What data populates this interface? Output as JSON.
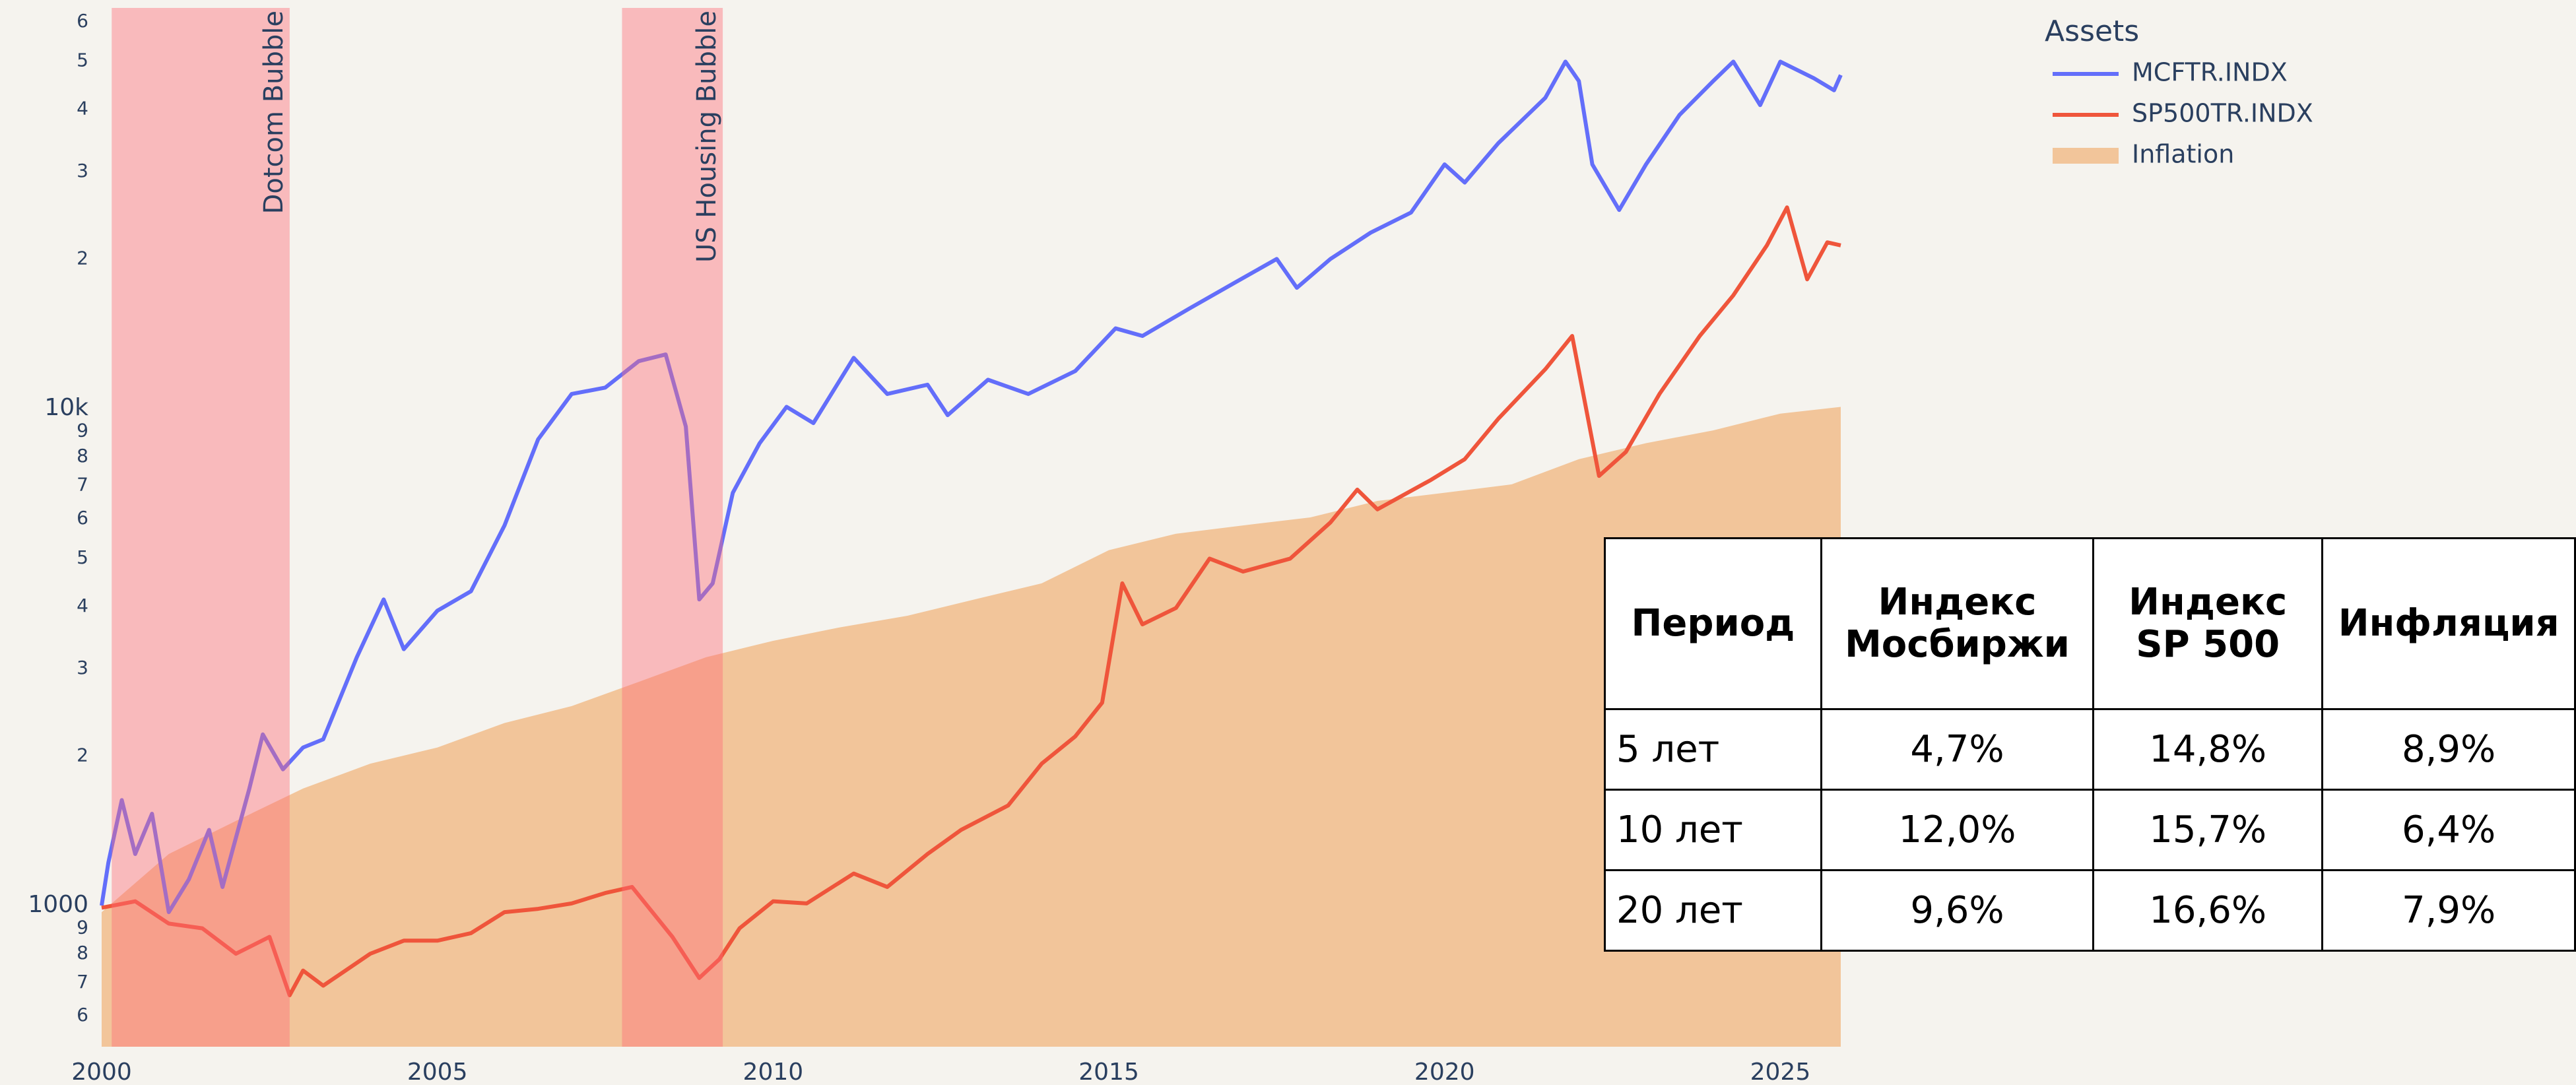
{
  "chart_data": {
    "type": "line",
    "log_y": true,
    "grid": false,
    "legend": "top-right",
    "legend_title": "Assets",
    "xlim": [
      2000,
      2025.9
    ],
    "xticks": [
      2000,
      2005,
      2010,
      2015,
      2020,
      2025
    ],
    "ylim": [
      520,
      64000
    ],
    "yticks": [
      {
        "value": 600,
        "label": "6"
      },
      {
        "value": 700,
        "label": "7"
      },
      {
        "value": 800,
        "label": "8"
      },
      {
        "value": 900,
        "label": "9"
      },
      1000,
      {
        "value": 2000,
        "label": "2"
      },
      {
        "value": 3000,
        "label": "3"
      },
      {
        "value": 4000,
        "label": "4"
      },
      {
        "value": 5000,
        "label": "5"
      },
      {
        "value": 6000,
        "label": "6"
      },
      {
        "value": 7000,
        "label": "7"
      },
      {
        "value": 8000,
        "label": "8"
      },
      {
        "value": 9000,
        "label": "9"
      },
      {
        "value": 10000,
        "label": "10k"
      },
      {
        "value": 20000,
        "label": "2"
      },
      {
        "value": 30000,
        "label": "3"
      },
      {
        "value": 40000,
        "label": "4"
      },
      {
        "value": 50000,
        "label": "5"
      },
      {
        "value": 60000,
        "label": "6"
      }
    ],
    "annotations": [
      {
        "label": "Dotcom Bubble",
        "start": 2000.15,
        "end": 2002.8,
        "color": "#ff6b78"
      },
      {
        "label": "US Housing Bubble",
        "start": 2007.75,
        "end": 2009.25,
        "color": "#ff6b78"
      }
    ],
    "series": [
      {
        "name": "MCFTR.INDX",
        "color": "#636efa",
        "kind": "line",
        "x": [
          2000.0,
          2000.1,
          2000.3,
          2000.5,
          2000.75,
          2001.0,
          2001.3,
          2001.6,
          2001.8,
          2002.2,
          2002.4,
          2002.7,
          2003.0,
          2003.3,
          2003.8,
          2004.2,
          2004.5,
          2005.0,
          2005.5,
          2006.0,
          2006.5,
          2007.0,
          2007.5,
          2008.0,
          2008.4,
          2008.7,
          2008.9,
          2009.1,
          2009.4,
          2009.8,
          2010.2,
          2010.6,
          2011.2,
          2011.7,
          2012.3,
          2012.6,
          2013.2,
          2013.8,
          2014.5,
          2015.1,
          2015.5,
          2016.2,
          2016.9,
          2017.5,
          2017.8,
          2018.3,
          2018.9,
          2019.5,
          2020.0,
          2020.3,
          2020.8,
          2021.5,
          2021.8,
          2022.0,
          2022.2,
          2022.6,
          2023.0,
          2023.5,
          2024.0,
          2024.3,
          2024.7,
          2025.0,
          2025.5,
          2025.8,
          2025.9
        ],
        "values": [
          1000,
          1220,
          1630,
          1270,
          1530,
          970,
          1130,
          1420,
          1090,
          1720,
          2210,
          1880,
          2080,
          2160,
          3160,
          4130,
          3280,
          3920,
          4290,
          5820,
          8670,
          10700,
          11020,
          12460,
          12850,
          9200,
          4130,
          4450,
          6770,
          8520,
          10080,
          9350,
          12650,
          10700,
          11170,
          9700,
          11430,
          10700,
          11900,
          14500,
          14000,
          15900,
          18000,
          20000,
          17500,
          20000,
          22600,
          24800,
          31000,
          28500,
          34200,
          42200,
          49900,
          45600,
          31000,
          25100,
          31000,
          39000,
          45600,
          49900,
          40800,
          49900,
          46200,
          43700,
          46900
        ]
      },
      {
        "name": "SP500TR.INDX",
        "color": "#ef553b",
        "kind": "line",
        "x": [
          2000.0,
          2000.5,
          2001.0,
          2001.5,
          2002.0,
          2002.5,
          2002.8,
          2003.0,
          2003.3,
          2004.0,
          2004.5,
          2005.0,
          2005.5,
          2006.0,
          2006.5,
          2007.0,
          2007.5,
          2007.9,
          2008.5,
          2008.9,
          2009.2,
          2009.5,
          2010.0,
          2010.5,
          2011.2,
          2011.7,
          2012.3,
          2012.8,
          2013.5,
          2014.0,
          2014.5,
          2014.9,
          2015.2,
          2015.5,
          2016.0,
          2016.5,
          2017.0,
          2017.7,
          2018.3,
          2018.7,
          2019.0,
          2019.8,
          2020.3,
          2020.8,
          2021.5,
          2021.9,
          2022.3,
          2022.7,
          2023.2,
          2023.8,
          2024.3,
          2024.8,
          2025.1,
          2025.4,
          2025.7,
          2025.9
        ],
        "values": [
          990,
          1020,
          920,
          900,
          800,
          865,
          660,
          740,
          690,
          800,
          850,
          850,
          880,
          970,
          985,
          1010,
          1060,
          1090,
          865,
          715,
          780,
          900,
          1020,
          1010,
          1160,
          1090,
          1270,
          1420,
          1590,
          1930,
          2190,
          2560,
          4450,
          3680,
          3970,
          4990,
          4700,
          4990,
          5900,
          6870,
          6270,
          7190,
          7910,
          9540,
          12000,
          14000,
          7320,
          8180,
          10700,
          14000,
          16900,
          21300,
          25400,
          18200,
          21600,
          21300
        ]
      },
      {
        "name": "Inflation",
        "color": "#f2c59a",
        "kind": "area",
        "x": [
          2000,
          2001,
          2002,
          2003,
          2004,
          2005,
          2006,
          2007,
          2008,
          2009,
          2010,
          2011,
          2012,
          2013,
          2014,
          2015,
          2016,
          2017,
          2018,
          2019,
          2020,
          2021,
          2022,
          2023,
          2024,
          2025,
          2025.9
        ],
        "values": [
          970,
          1270,
          1480,
          1720,
          1930,
          2080,
          2330,
          2520,
          2820,
          3160,
          3410,
          3630,
          3830,
          4130,
          4450,
          5190,
          5600,
          5820,
          6040,
          6520,
          6770,
          7040,
          7910,
          8520,
          9040,
          9770,
          10080
        ]
      }
    ]
  },
  "table": {
    "header": [
      "Период",
      "Индекс Мосбиржи",
      "Индекс SP 500",
      "Инфляция"
    ],
    "rows": [
      [
        "5 лет",
        "4,7%",
        "14,8%",
        "8,9%"
      ],
      [
        "10 лет",
        "12,0%",
        "15,7%",
        "6,4%"
      ],
      [
        "20 лет",
        "9,6%",
        "16,6%",
        "7,9%"
      ]
    ]
  }
}
